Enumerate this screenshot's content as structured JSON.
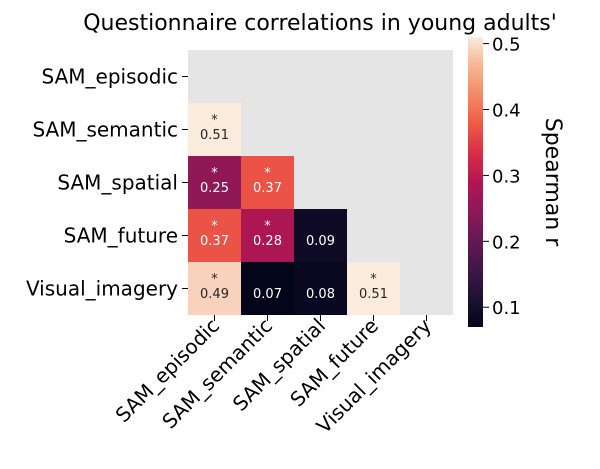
{
  "chart_data": {
    "type": "heatmap",
    "title": "Questionnaire correlations in young adults'",
    "rows": [
      "SAM_episodic",
      "SAM_semantic",
      "SAM_spatial",
      "SAM_future",
      "Visual_imagery"
    ],
    "cols": [
      "SAM_episodic",
      "SAM_semantic",
      "SAM_spatial",
      "SAM_future",
      "Visual_imagery"
    ],
    "cells": [
      {
        "row": 1,
        "col": 0,
        "value": 0.51,
        "label": "0.51",
        "significant": true
      },
      {
        "row": 2,
        "col": 0,
        "value": 0.25,
        "label": "0.25",
        "significant": true
      },
      {
        "row": 2,
        "col": 1,
        "value": 0.37,
        "label": "0.37",
        "significant": true
      },
      {
        "row": 3,
        "col": 0,
        "value": 0.37,
        "label": "0.37",
        "significant": true
      },
      {
        "row": 3,
        "col": 1,
        "value": 0.28,
        "label": "0.28",
        "significant": true
      },
      {
        "row": 3,
        "col": 2,
        "value": 0.09,
        "label": "0.09",
        "significant": false
      },
      {
        "row": 4,
        "col": 0,
        "value": 0.49,
        "label": "0.49",
        "significant": true
      },
      {
        "row": 4,
        "col": 1,
        "value": 0.07,
        "label": "0.07",
        "significant": false
      },
      {
        "row": 4,
        "col": 2,
        "value": 0.08,
        "label": "0.08",
        "significant": false
      },
      {
        "row": 4,
        "col": 3,
        "value": 0.51,
        "label": "0.51",
        "significant": true
      }
    ],
    "significance_marker": "*",
    "mask": "upper-triangle-and-diagonal",
    "masked_color": "#e5e5e5",
    "colorbar": {
      "label": "Spearman r",
      "vmin": 0.07,
      "vmax": 0.51,
      "ticks": [
        0.1,
        0.2,
        0.3,
        0.4,
        0.5
      ],
      "tick_labels": [
        "0.1",
        "0.2",
        "0.3",
        "0.4",
        "0.5"
      ],
      "colormap": "rocket"
    }
  }
}
